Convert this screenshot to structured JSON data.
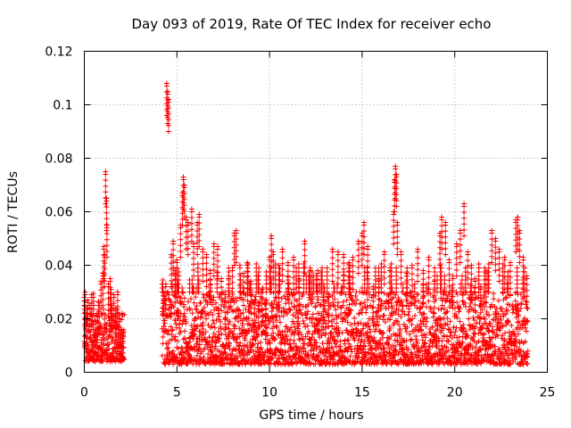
{
  "chart_data": {
    "type": "scatter",
    "title": "Day 093 of 2019, Rate Of TEC Index for receiver echo",
    "xlabel": "GPS time / hours",
    "ylabel": "ROTI / TECUs",
    "xlim": [
      0,
      25
    ],
    "ylim": [
      0,
      0.12
    ],
    "xticks": [
      0,
      5,
      10,
      15,
      20,
      25
    ],
    "xtick_labels": [
      "0",
      "5",
      "10",
      "15",
      "20",
      "25"
    ],
    "yticks": [
      0,
      0.02,
      0.04,
      0.06,
      0.08,
      0.1,
      0.12
    ],
    "ytick_labels": [
      "0",
      "0.02",
      "0.04",
      "0.06",
      "0.08",
      "0.1",
      "0.12"
    ],
    "grid": true,
    "marker": "plus",
    "color": "#ff0000",
    "series": [
      {
        "name": "ROTI",
        "points": [
          [
            0.05,
            0.03
          ],
          [
            0.1,
            0.021
          ],
          [
            0.2,
            0.027
          ],
          [
            0.3,
            0.025
          ],
          [
            0.4,
            0.029
          ],
          [
            0.5,
            0.016
          ],
          [
            0.6,
            0.019
          ],
          [
            0.7,
            0.022
          ],
          [
            0.8,
            0.026
          ],
          [
            0.9,
            0.034
          ],
          [
            1.0,
            0.037
          ],
          [
            1.05,
            0.047
          ],
          [
            1.1,
            0.044
          ],
          [
            1.15,
            0.075
          ],
          [
            1.2,
            0.065
          ],
          [
            1.22,
            0.055
          ],
          [
            1.3,
            0.033
          ],
          [
            1.4,
            0.035
          ],
          [
            1.5,
            0.025
          ],
          [
            1.6,
            0.029
          ],
          [
            1.7,
            0.024
          ],
          [
            1.8,
            0.03
          ],
          [
            1.9,
            0.02
          ],
          [
            2.0,
            0.016
          ],
          [
            2.1,
            0.015
          ],
          [
            4.3,
            0.027
          ],
          [
            4.4,
            0.033
          ],
          [
            4.45,
            0.108
          ],
          [
            4.5,
            0.105
          ],
          [
            4.55,
            0.102
          ],
          [
            4.7,
            0.044
          ],
          [
            4.8,
            0.049
          ],
          [
            4.9,
            0.038
          ],
          [
            5.0,
            0.042
          ],
          [
            5.2,
            0.055
          ],
          [
            5.3,
            0.067
          ],
          [
            5.35,
            0.073
          ],
          [
            5.4,
            0.07
          ],
          [
            5.5,
            0.058
          ],
          [
            5.6,
            0.056
          ],
          [
            5.8,
            0.061
          ],
          [
            5.9,
            0.048
          ],
          [
            6.1,
            0.056
          ],
          [
            6.2,
            0.059
          ],
          [
            6.4,
            0.046
          ],
          [
            6.6,
            0.044
          ],
          [
            6.8,
            0.038
          ],
          [
            7.0,
            0.048
          ],
          [
            7.2,
            0.047
          ],
          [
            7.4,
            0.035
          ],
          [
            7.6,
            0.03
          ],
          [
            7.8,
            0.036
          ],
          [
            8.0,
            0.039
          ],
          [
            8.1,
            0.052
          ],
          [
            8.2,
            0.053
          ],
          [
            8.4,
            0.04
          ],
          [
            8.6,
            0.037
          ],
          [
            8.8,
            0.041
          ],
          [
            9.0,
            0.034
          ],
          [
            9.2,
            0.027
          ],
          [
            9.4,
            0.026
          ],
          [
            9.6,
            0.031
          ],
          [
            9.8,
            0.027
          ],
          [
            10.0,
            0.043
          ],
          [
            10.1,
            0.051
          ],
          [
            10.2,
            0.045
          ],
          [
            10.5,
            0.04
          ],
          [
            10.7,
            0.046
          ],
          [
            11.0,
            0.041
          ],
          [
            11.3,
            0.043
          ],
          [
            11.6,
            0.035
          ],
          [
            11.9,
            0.049
          ],
          [
            12.2,
            0.039
          ],
          [
            12.6,
            0.038
          ],
          [
            12.9,
            0.028
          ],
          [
            13.2,
            0.029
          ],
          [
            13.4,
            0.046
          ],
          [
            13.7,
            0.045
          ],
          [
            14.0,
            0.044
          ],
          [
            14.3,
            0.041
          ],
          [
            14.5,
            0.043
          ],
          [
            14.8,
            0.049
          ],
          [
            15.0,
            0.052
          ],
          [
            15.1,
            0.056
          ],
          [
            15.3,
            0.047
          ],
          [
            15.6,
            0.032
          ],
          [
            15.9,
            0.035
          ],
          [
            16.2,
            0.045
          ],
          [
            16.5,
            0.039
          ],
          [
            16.7,
            0.06
          ],
          [
            16.75,
            0.072
          ],
          [
            16.8,
            0.077
          ],
          [
            16.85,
            0.074
          ],
          [
            16.9,
            0.056
          ],
          [
            17.1,
            0.045
          ],
          [
            17.4,
            0.037
          ],
          [
            17.7,
            0.04
          ],
          [
            18.0,
            0.046
          ],
          [
            18.3,
            0.038
          ],
          [
            18.6,
            0.043
          ],
          [
            18.9,
            0.034
          ],
          [
            19.2,
            0.052
          ],
          [
            19.3,
            0.058
          ],
          [
            19.5,
            0.056
          ],
          [
            19.7,
            0.042
          ],
          [
            19.9,
            0.036
          ],
          [
            20.1,
            0.048
          ],
          [
            20.3,
            0.053
          ],
          [
            20.5,
            0.063
          ],
          [
            20.7,
            0.045
          ],
          [
            20.9,
            0.04
          ],
          [
            21.1,
            0.035
          ],
          [
            21.4,
            0.032
          ],
          [
            21.7,
            0.038
          ],
          [
            22.0,
            0.053
          ],
          [
            22.2,
            0.05
          ],
          [
            22.4,
            0.046
          ],
          [
            22.7,
            0.043
          ],
          [
            23.0,
            0.041
          ],
          [
            23.3,
            0.057
          ],
          [
            23.4,
            0.058
          ],
          [
            23.5,
            0.053
          ],
          [
            23.7,
            0.043
          ],
          [
            23.9,
            0.036
          ]
        ]
      }
    ],
    "bands": [
      {
        "x_start": 0.0,
        "x_end": 2.15,
        "y_min": 0.004,
        "y_max": 0.022
      },
      {
        "x_start": 4.2,
        "x_end": 23.95,
        "y_min": 0.003,
        "y_max": 0.03
      }
    ]
  }
}
